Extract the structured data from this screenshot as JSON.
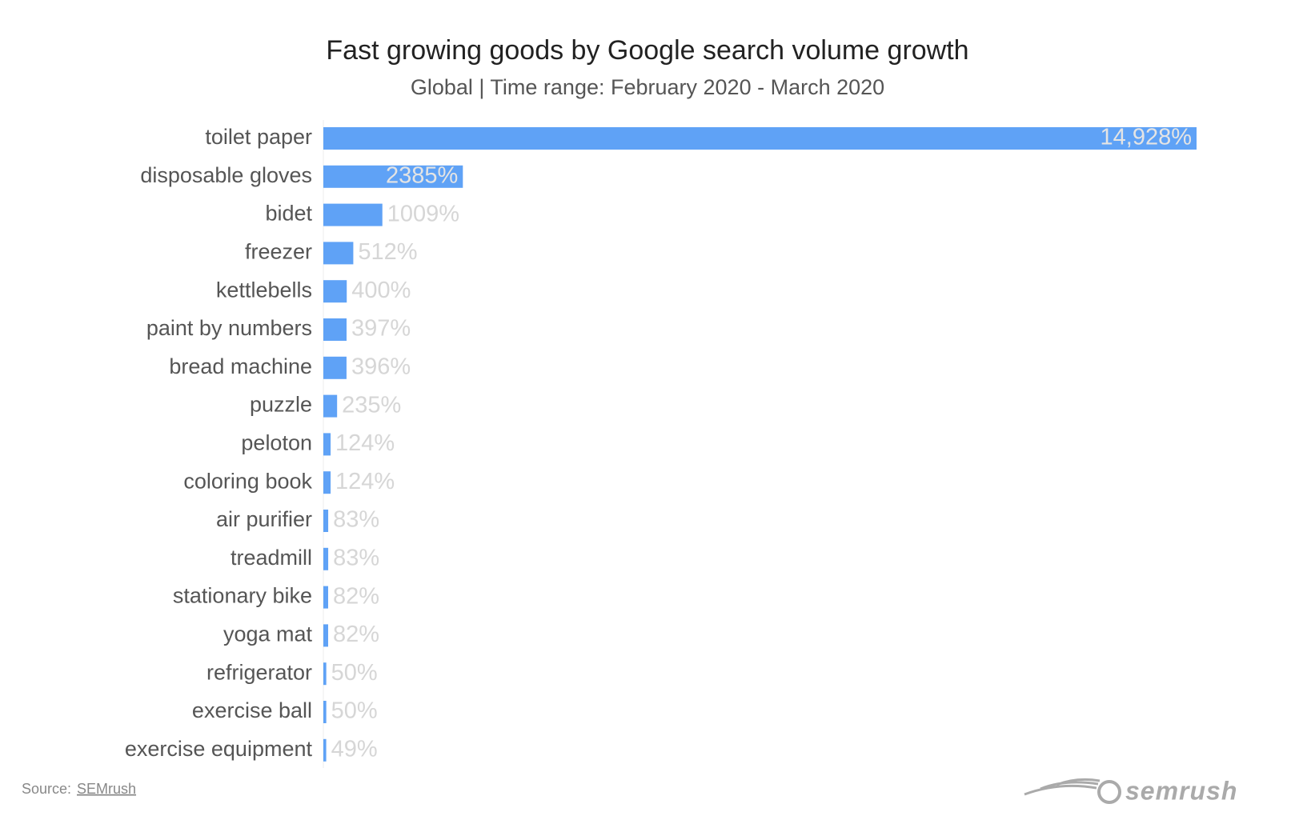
{
  "chart_data": {
    "type": "bar",
    "orientation": "horizontal",
    "title": "Fast growing goods by Google search volume growth",
    "subtitle": "Global | Time range: February 2020 - March 2020",
    "categories": [
      "toilet paper",
      "disposable gloves",
      "bidet",
      "freezer",
      "kettlebells",
      "paint by numbers",
      "bread machine",
      "puzzle",
      "peloton",
      "coloring book",
      "air purifier",
      "treadmill",
      "stationary bike",
      "yoga mat",
      "refrigerator",
      "exercise ball",
      "exercise equipment"
    ],
    "values": [
      14928,
      2385,
      1009,
      512,
      400,
      397,
      396,
      235,
      124,
      124,
      83,
      83,
      82,
      82,
      50,
      50,
      49
    ],
    "value_labels": [
      "14,928%",
      "2385%",
      "1009%",
      "512%",
      "400%",
      "397%",
      "396%",
      "235%",
      "124%",
      "124%",
      "83%",
      "83%",
      "82%",
      "82%",
      "50%",
      "50%",
      "49%"
    ],
    "color": "#5fa2f6",
    "source_label": "Source:",
    "source_name": "SEMrush",
    "logo_text": "semrush"
  }
}
